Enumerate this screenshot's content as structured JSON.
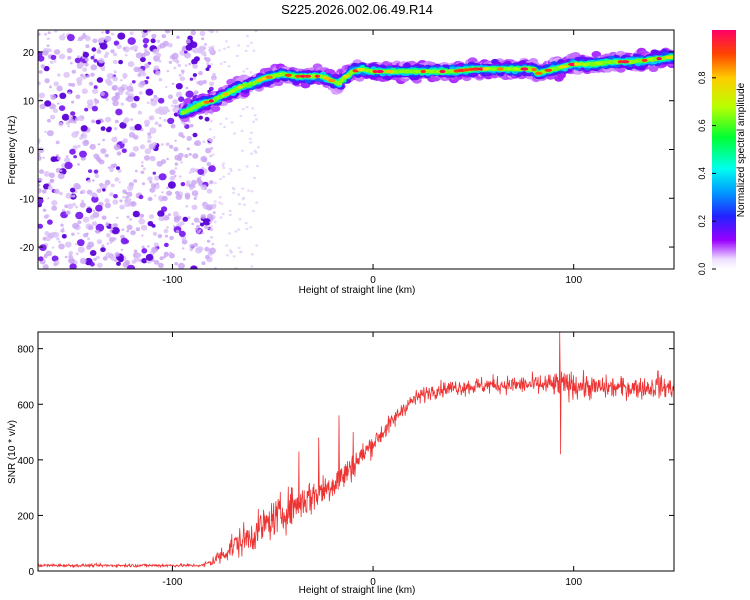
{
  "chart_data": [
    {
      "type": "heatmap",
      "title": "S225.2026.002.06.49.R14",
      "xlabel": "Height of straight line (km)",
      "ylabel": "Frequency (Hz)",
      "xlim": [
        -167,
        150
      ],
      "ylim": [
        -24.5,
        24.5
      ],
      "xticks": [
        -100,
        0,
        100
      ],
      "yticks": [
        -20,
        -10,
        0,
        10,
        20
      ],
      "colorbar": {
        "label": "Normalized spectral amplitude",
        "range": [
          0,
          1
        ],
        "ticks": [
          "0.0",
          "0.2",
          "0.4",
          "0.6",
          "0.8"
        ],
        "tick_values": [
          0.0,
          0.2,
          0.4,
          0.6,
          0.8
        ]
      },
      "noise_region": {
        "x": [
          -167,
          -82
        ],
        "y": [
          -24.5,
          24.5
        ]
      },
      "signal_track": {
        "x": [
          -95,
          -90,
          -85,
          -80,
          -75,
          -70,
          -65,
          -60,
          -55,
          -50,
          -45,
          -40,
          -35,
          -30,
          -25,
          -20,
          -17,
          -15,
          -10,
          -5,
          0,
          10,
          20,
          30,
          40,
          50,
          60,
          70,
          80,
          82,
          85,
          90,
          100,
          110,
          120,
          130,
          140,
          150
        ],
        "freq": [
          7.5,
          8.5,
          9.5,
          10.0,
          11.0,
          12.0,
          13.0,
          13.5,
          14.5,
          15.0,
          15.5,
          15.0,
          15.0,
          15.0,
          15.0,
          14.0,
          13.5,
          14.5,
          16.0,
          16.5,
          16.0,
          16.0,
          16.0,
          16.0,
          16.0,
          16.5,
          16.5,
          16.5,
          16.5,
          15.5,
          16.0,
          16.5,
          17.5,
          17.5,
          18.0,
          18.0,
          18.5,
          19.0
        ]
      }
    },
    {
      "type": "line",
      "xlabel": "Height of straight line (km)",
      "ylabel": "SNR (10 * v/v)",
      "xlim": [
        -167,
        150
      ],
      "ylim": [
        0,
        860
      ],
      "xticks": [
        -100,
        0,
        100
      ],
      "yticks": [
        0,
        200,
        400,
        600,
        800
      ],
      "color": "#ee3333",
      "series": [
        {
          "name": "SNR",
          "x": [
            -167,
            -140,
            -120,
            -100,
            -85,
            -80,
            -75,
            -70,
            -65,
            -60,
            -55,
            -50,
            -45,
            -40,
            -35,
            -30,
            -25,
            -20,
            -15,
            -10,
            -5,
            0,
            5,
            10,
            15,
            20,
            25,
            30,
            40,
            50,
            60,
            70,
            80,
            90,
            100,
            110,
            120,
            130,
            140,
            150
          ],
          "y": [
            20,
            20,
            20,
            20,
            20,
            35,
            60,
            90,
            110,
            130,
            160,
            185,
            210,
            235,
            255,
            270,
            290,
            315,
            340,
            380,
            420,
            460,
            500,
            540,
            585,
            615,
            635,
            650,
            660,
            665,
            670,
            670,
            670,
            670,
            670,
            660,
            660,
            660,
            660,
            660
          ],
          "noise": [
            8,
            8,
            8,
            8,
            8,
            30,
            50,
            70,
            80,
            85,
            90,
            95,
            100,
            100,
            100,
            95,
            90,
            85,
            80,
            70,
            60,
            55,
            50,
            45,
            40,
            40,
            40,
            40,
            40,
            45,
            45,
            45,
            50,
            65,
            70,
            60,
            55,
            55,
            55,
            55
          ],
          "spikes": [
            {
              "x": -37,
              "y": 430
            },
            {
              "x": -27,
              "y": 480
            },
            {
              "x": -17,
              "y": 560
            },
            {
              "x": -10,
              "y": 500
            },
            {
              "x": 93,
              "y": 860
            },
            {
              "x": 93.5,
              "y": 420
            },
            {
              "x": 142,
              "y": 720
            }
          ]
        }
      ]
    }
  ]
}
